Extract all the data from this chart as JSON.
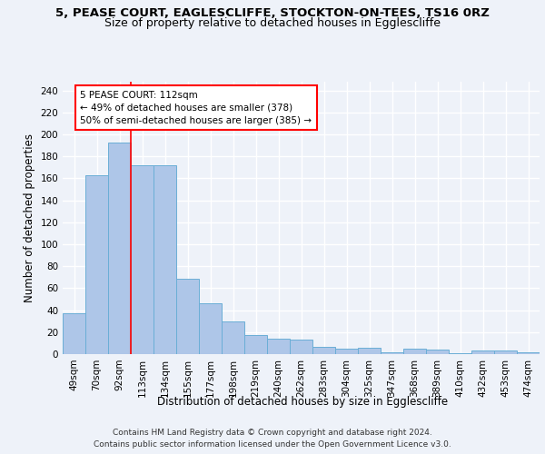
{
  "title_line1": "5, PEASE COURT, EAGLESCLIFFE, STOCKTON-ON-TEES, TS16 0RZ",
  "title_line2": "Size of property relative to detached houses in Egglescliffe",
  "xlabel": "Distribution of detached houses by size in Egglescliffe",
  "ylabel": "Number of detached properties",
  "categories": [
    "49sqm",
    "70sqm",
    "92sqm",
    "113sqm",
    "134sqm",
    "155sqm",
    "177sqm",
    "198sqm",
    "219sqm",
    "240sqm",
    "262sqm",
    "283sqm",
    "304sqm",
    "325sqm",
    "347sqm",
    "368sqm",
    "389sqm",
    "410sqm",
    "432sqm",
    "453sqm",
    "474sqm"
  ],
  "values": [
    37,
    163,
    193,
    172,
    172,
    69,
    46,
    30,
    17,
    14,
    13,
    7,
    5,
    6,
    2,
    5,
    4,
    1,
    3,
    3,
    2
  ],
  "bar_color": "#aec6e8",
  "bar_edge_color": "#6aaed6",
  "red_line_x": 2.5,
  "annotation_text": "5 PEASE COURT: 112sqm\n← 49% of detached houses are smaller (378)\n50% of semi-detached houses are larger (385) →",
  "annotation_box_color": "white",
  "annotation_box_edge_color": "red",
  "ylim_max": 248,
  "yticks": [
    0,
    20,
    40,
    60,
    80,
    100,
    120,
    140,
    160,
    180,
    200,
    220,
    240
  ],
  "footer_line1": "Contains HM Land Registry data © Crown copyright and database right 2024.",
  "footer_line2": "Contains public sector information licensed under the Open Government Licence v3.0.",
  "background_color": "#eef2f9",
  "grid_color": "white",
  "title_fontsize": 9.5,
  "subtitle_fontsize": 9.0,
  "axis_label_fontsize": 8.5,
  "tick_fontsize": 7.5,
  "annotation_fontsize": 7.5,
  "footer_fontsize": 6.5
}
